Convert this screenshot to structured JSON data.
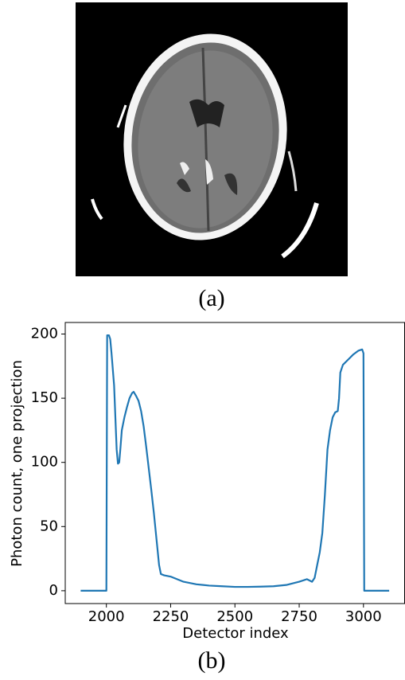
{
  "panel_a": {
    "caption": "(a)"
  },
  "panel_b": {
    "caption": "(b)"
  },
  "chart_data": {
    "type": "line",
    "xlabel": "Detector index",
    "ylabel": "Photon count, one projection",
    "color": "#1f77b4",
    "x": [
      1900,
      1995,
      2000,
      2003,
      2010,
      2015,
      2020,
      2030,
      2040,
      2045,
      2050,
      2055,
      2060,
      2070,
      2080,
      2090,
      2100,
      2106,
      2115,
      2125,
      2135,
      2145,
      2155,
      2165,
      2175,
      2185,
      2195,
      2205,
      2212,
      2225,
      2250,
      2300,
      2350,
      2400,
      2450,
      2500,
      2550,
      2600,
      2650,
      2700,
      2750,
      2780,
      2800,
      2810,
      2820,
      2830,
      2840,
      2850,
      2860,
      2870,
      2880,
      2890,
      2900,
      2905,
      2910,
      2920,
      2940,
      2960,
      2980,
      2995,
      3000,
      3003,
      3100
    ],
    "values": [
      0,
      0,
      0,
      199,
      199,
      196,
      185,
      160,
      110,
      99,
      100,
      112,
      125,
      135,
      143,
      150,
      154,
      155,
      152,
      148,
      140,
      128,
      112,
      95,
      78,
      60,
      40,
      20,
      13,
      12,
      11,
      7,
      5,
      4,
      3.5,
      3,
      3,
      3.2,
      3.5,
      4.5,
      7,
      9,
      7,
      10,
      20,
      30,
      45,
      75,
      110,
      125,
      135,
      139,
      140,
      150,
      170,
      176,
      180,
      184,
      187,
      188,
      185,
      0,
      0
    ],
    "xlim": [
      1840,
      3160
    ],
    "ylim": [
      -10,
      209
    ],
    "xticks": [
      2000,
      2250,
      2500,
      2750,
      3000
    ],
    "yticks": [
      0,
      50,
      100,
      150,
      200
    ]
  }
}
